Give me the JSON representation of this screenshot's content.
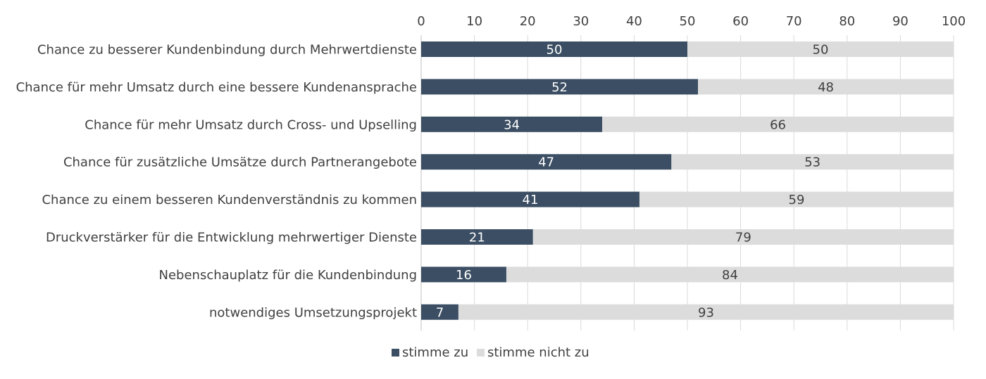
{
  "chart_data": {
    "type": "bar",
    "orientation": "horizontal",
    "stacked": true,
    "categories": [
      "Chance zu besserer Kundenbindung durch Mehrwertdienste",
      "Chance für mehr Umsatz durch eine bessere Kundenansprache",
      "Chance für mehr Umsatz durch Cross- und Upselling",
      "Chance für zusätzliche Umsätze durch Partnerangebote",
      "Chance zu einem besseren Kundenverständnis zu kommen",
      "Druckverstärker für die Entwicklung mehrwertiger Dienste",
      "Nebenschauplatz für die Kundenbindung",
      "notwendiges Umsetzungsprojekt"
    ],
    "series": [
      {
        "name": "stimme zu",
        "values": [
          50,
          52,
          34,
          47,
          41,
          21,
          16,
          7
        ],
        "color": "#3b4e63"
      },
      {
        "name": "stimme nicht zu",
        "values": [
          50,
          48,
          66,
          53,
          59,
          79,
          84,
          93
        ],
        "color": "#dcdcdc"
      }
    ],
    "xlim": [
      0,
      100
    ],
    "x_ticks": [
      0,
      10,
      20,
      30,
      40,
      50,
      60,
      70,
      80,
      90,
      100
    ],
    "x_axis_position": "top",
    "grid": true,
    "legend_position": "bottom"
  }
}
